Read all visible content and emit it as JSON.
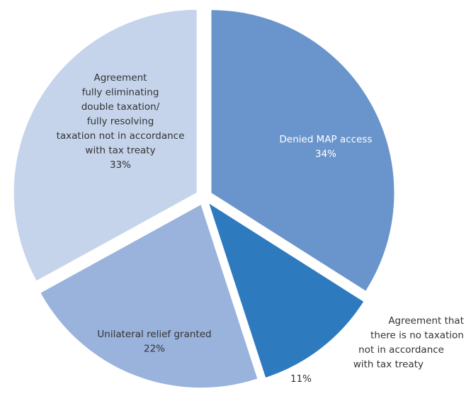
{
  "chart_data": {
    "type": "pie",
    "categories": [
      "Denied MAP access",
      "Agreement that\nthere is no taxation\nnot in accordance\nwith tax treaty",
      "Unilateral relief granted",
      "Agreement\nfully eliminating\ndouble taxation/\nfully resolving\ntaxation not in accordance\nwith tax treaty"
    ],
    "values": [
      34,
      11,
      22,
      33
    ],
    "value_labels": [
      "34%",
      "11%",
      "22%",
      "33%"
    ],
    "colors": [
      "#6a95cc",
      "#2e7abf",
      "#99b3dc",
      "#c5d4eb"
    ]
  }
}
